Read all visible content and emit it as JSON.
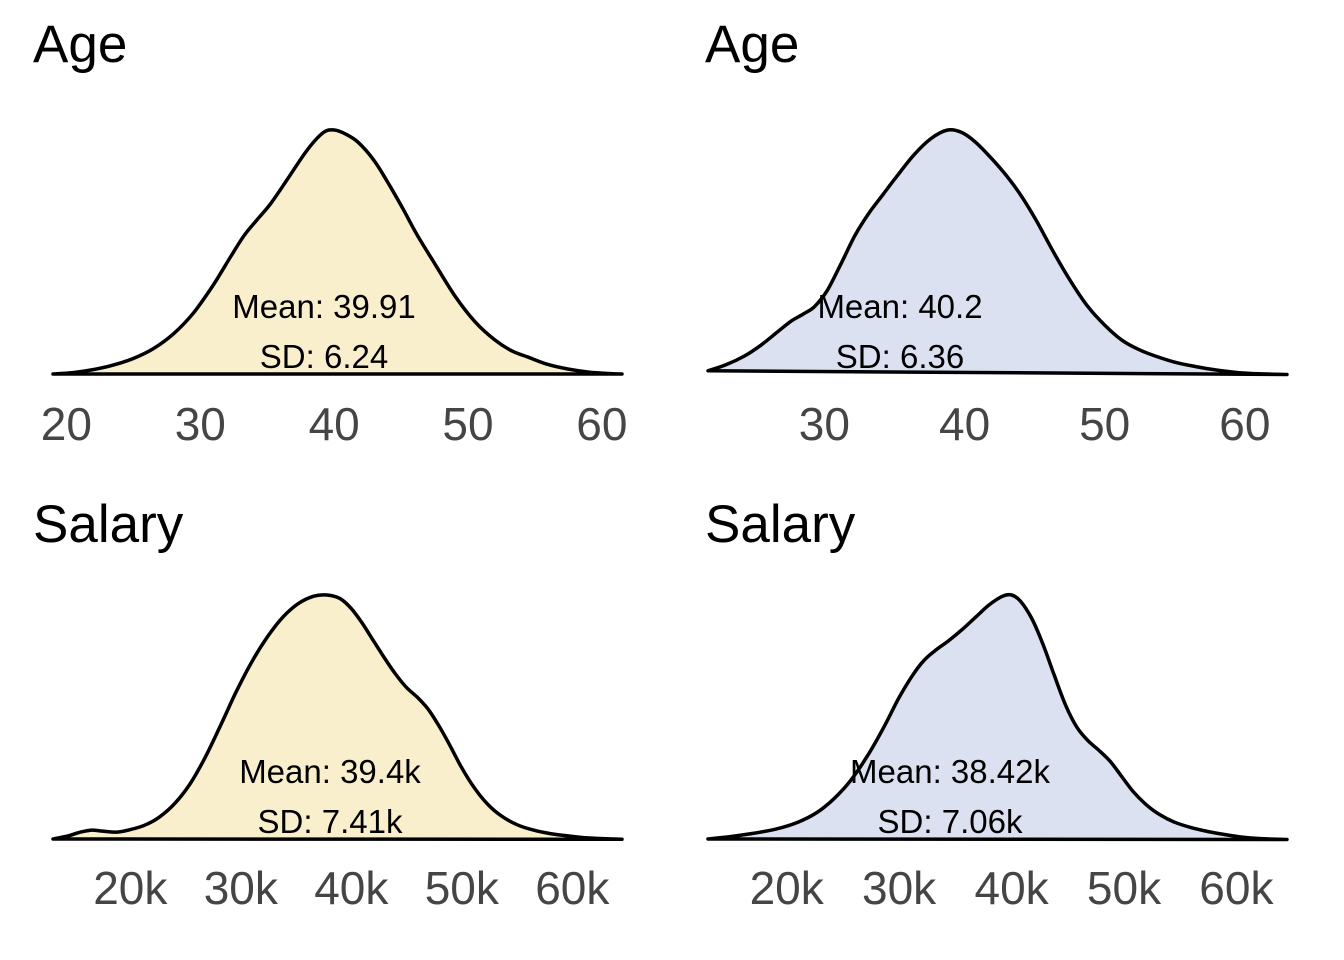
{
  "figure": {
    "background_color": "#ffffff",
    "grid": "off",
    "legend": "none",
    "curve_stroke_width": 3.5,
    "tick_label_color": "#454545",
    "title_color": "#000000",
    "annotation_color": "#000000"
  },
  "chart_data": [
    {
      "type": "area",
      "title": "Age",
      "mean": 39.91,
      "sd": 6.24,
      "annotations": {
        "mean": "Mean: 39.91",
        "sd": "SD: 6.24"
      },
      "fill_color": "#FAEFCC",
      "stroke_color": "#000000",
      "x_domain": [
        19,
        61.5
      ],
      "x_ticks": [
        {
          "value": 20,
          "label": "20"
        },
        {
          "value": 30,
          "label": "30"
        },
        {
          "value": 40,
          "label": "40"
        },
        {
          "value": 50,
          "label": "50"
        },
        {
          "value": 60,
          "label": "60"
        }
      ],
      "density_units": "relative density, peak normalized to 1",
      "points": [
        [
          19,
          0.012
        ],
        [
          20.5,
          0.018
        ],
        [
          22,
          0.03
        ],
        [
          23.5,
          0.048
        ],
        [
          25,
          0.075
        ],
        [
          26.5,
          0.115
        ],
        [
          28,
          0.175
        ],
        [
          29.5,
          0.26
        ],
        [
          31,
          0.375
        ],
        [
          32.3,
          0.49
        ],
        [
          33.3,
          0.575
        ],
        [
          34.3,
          0.64
        ],
        [
          35.3,
          0.705
        ],
        [
          36.5,
          0.8
        ],
        [
          38,
          0.92
        ],
        [
          39.2,
          0.99
        ],
        [
          40,
          1.0
        ],
        [
          40.8,
          0.985
        ],
        [
          41.8,
          0.95
        ],
        [
          43,
          0.875
        ],
        [
          44.2,
          0.77
        ],
        [
          45.2,
          0.675
        ],
        [
          46.2,
          0.575
        ],
        [
          47.5,
          0.46
        ],
        [
          49,
          0.33
        ],
        [
          50.5,
          0.225
        ],
        [
          52,
          0.15
        ],
        [
          53.3,
          0.105
        ],
        [
          54.5,
          0.08
        ],
        [
          56,
          0.05
        ],
        [
          57.5,
          0.032
        ],
        [
          59,
          0.02
        ],
        [
          60.5,
          0.014
        ],
        [
          61.5,
          0.012
        ]
      ]
    },
    {
      "type": "area",
      "title": "Age",
      "mean": 40.2,
      "sd": 6.36,
      "annotations": {
        "mean": "Mean: 40.2",
        "sd": "SD: 6.36"
      },
      "fill_color": "#DBE1F0",
      "stroke_color": "#000000",
      "x_domain": [
        21.7,
        63
      ],
      "x_ticks": [
        {
          "value": 30,
          "label": "30"
        },
        {
          "value": 40,
          "label": "40"
        },
        {
          "value": 50,
          "label": "50"
        },
        {
          "value": 60,
          "label": "60"
        }
      ],
      "density_units": "relative density, peak normalized to 1",
      "points": [
        [
          21.7,
          0.025
        ],
        [
          23,
          0.05
        ],
        [
          24.3,
          0.085
        ],
        [
          25.5,
          0.13
        ],
        [
          26.6,
          0.18
        ],
        [
          27.6,
          0.225
        ],
        [
          28.5,
          0.255
        ],
        [
          29.3,
          0.285
        ],
        [
          30.2,
          0.35
        ],
        [
          31.2,
          0.46
        ],
        [
          32.2,
          0.575
        ],
        [
          33.2,
          0.665
        ],
        [
          34.2,
          0.74
        ],
        [
          35.2,
          0.815
        ],
        [
          36.4,
          0.9
        ],
        [
          37.6,
          0.965
        ],
        [
          38.8,
          1.0
        ],
        [
          39.8,
          0.99
        ],
        [
          40.8,
          0.95
        ],
        [
          42,
          0.88
        ],
        [
          43.2,
          0.8
        ],
        [
          44.2,
          0.72
        ],
        [
          45.2,
          0.625
        ],
        [
          46.4,
          0.5
        ],
        [
          47.6,
          0.385
        ],
        [
          48.8,
          0.285
        ],
        [
          50,
          0.21
        ],
        [
          51.2,
          0.15
        ],
        [
          52.4,
          0.112
        ],
        [
          53.6,
          0.085
        ],
        [
          55,
          0.06
        ],
        [
          56.5,
          0.042
        ],
        [
          58,
          0.028
        ],
        [
          59.5,
          0.018
        ],
        [
          61,
          0.013
        ],
        [
          63,
          0.01
        ]
      ]
    },
    {
      "type": "area",
      "title": "Salary",
      "mean": "39.4k",
      "sd": "7.41k",
      "annotations": {
        "mean": "Mean: 39.4k",
        "sd": "SD: 7.41k"
      },
      "fill_color": "#FAEFCC",
      "stroke_color": "#000000",
      "x_domain": [
        13,
        64.5
      ],
      "x_ticks": [
        {
          "value": 20,
          "label": "20k"
        },
        {
          "value": 30,
          "label": "30k"
        },
        {
          "value": 40,
          "label": "40k"
        },
        {
          "value": 50,
          "label": "50k"
        },
        {
          "value": 60,
          "label": "60k"
        }
      ],
      "density_units": "relative density, peak normalized to 1; x in thousands",
      "points": [
        [
          13,
          0.012
        ],
        [
          14.3,
          0.024
        ],
        [
          15.5,
          0.04
        ],
        [
          16.5,
          0.048
        ],
        [
          17.5,
          0.044
        ],
        [
          18.8,
          0.04
        ],
        [
          20,
          0.05
        ],
        [
          21.3,
          0.068
        ],
        [
          22.6,
          0.1
        ],
        [
          24,
          0.155
        ],
        [
          25.4,
          0.235
        ],
        [
          26.8,
          0.345
        ],
        [
          28.2,
          0.475
        ],
        [
          29.6,
          0.61
        ],
        [
          31,
          0.73
        ],
        [
          32.4,
          0.83
        ],
        [
          33.8,
          0.91
        ],
        [
          35.2,
          0.965
        ],
        [
          36.6,
          0.995
        ],
        [
          37.8,
          1.0
        ],
        [
          39,
          0.985
        ],
        [
          40,
          0.945
        ],
        [
          41,
          0.885
        ],
        [
          42,
          0.815
        ],
        [
          43,
          0.745
        ],
        [
          44,
          0.68
        ],
        [
          45,
          0.625
        ],
        [
          46,
          0.585
        ],
        [
          47,
          0.535
        ],
        [
          48,
          0.465
        ],
        [
          49,
          0.385
        ],
        [
          50,
          0.3
        ],
        [
          51.2,
          0.215
        ],
        [
          52.4,
          0.15
        ],
        [
          53.6,
          0.105
        ],
        [
          55,
          0.07
        ],
        [
          56.5,
          0.048
        ],
        [
          58,
          0.034
        ],
        [
          59.5,
          0.025
        ],
        [
          61,
          0.018
        ],
        [
          62.5,
          0.014
        ],
        [
          64.5,
          0.011
        ]
      ]
    },
    {
      "type": "area",
      "title": "Salary",
      "mean": "38.42k",
      "sd": "7.06k",
      "annotations": {
        "mean": "Mean: 38.42k",
        "sd": "SD: 7.06k"
      },
      "fill_color": "#DBE1F0",
      "stroke_color": "#000000",
      "x_domain": [
        13,
        64.5
      ],
      "x_ticks": [
        {
          "value": 20,
          "label": "20k"
        },
        {
          "value": 30,
          "label": "30k"
        },
        {
          "value": 40,
          "label": "40k"
        },
        {
          "value": 50,
          "label": "50k"
        },
        {
          "value": 60,
          "label": "60k"
        }
      ],
      "density_units": "relative density, peak normalized to 1; x in thousands",
      "points": [
        [
          13,
          0.012
        ],
        [
          15,
          0.022
        ],
        [
          17,
          0.035
        ],
        [
          19,
          0.052
        ],
        [
          21,
          0.08
        ],
        [
          22.7,
          0.12
        ],
        [
          24.2,
          0.175
        ],
        [
          25.7,
          0.25
        ],
        [
          27.2,
          0.35
        ],
        [
          28.7,
          0.47
        ],
        [
          30,
          0.585
        ],
        [
          31.2,
          0.675
        ],
        [
          32.2,
          0.735
        ],
        [
          33.2,
          0.775
        ],
        [
          34.4,
          0.815
        ],
        [
          35.6,
          0.86
        ],
        [
          36.8,
          0.91
        ],
        [
          38,
          0.96
        ],
        [
          39.2,
          0.995
        ],
        [
          40,
          1.0
        ],
        [
          40.8,
          0.975
        ],
        [
          41.8,
          0.905
        ],
        [
          42.8,
          0.8
        ],
        [
          43.8,
          0.675
        ],
        [
          44.8,
          0.555
        ],
        [
          45.8,
          0.465
        ],
        [
          46.8,
          0.41
        ],
        [
          47.8,
          0.37
        ],
        [
          48.8,
          0.325
        ],
        [
          49.8,
          0.265
        ],
        [
          50.8,
          0.205
        ],
        [
          52,
          0.15
        ],
        [
          53.2,
          0.11
        ],
        [
          54.5,
          0.08
        ],
        [
          56,
          0.058
        ],
        [
          57.5,
          0.042
        ],
        [
          59,
          0.03
        ],
        [
          60.5,
          0.02
        ],
        [
          62,
          0.014
        ],
        [
          64.5,
          0.01
        ]
      ]
    }
  ]
}
